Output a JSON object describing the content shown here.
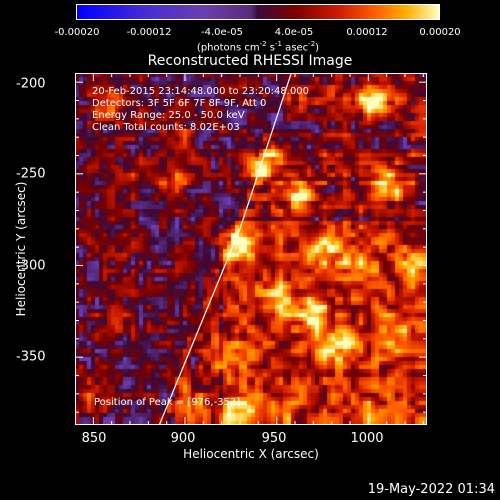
{
  "colorbar": {
    "ticks": [
      "-0.00020",
      "-0.00012",
      "-4.0e-05",
      "4.0e-05",
      "0.00012",
      "0.00020"
    ],
    "units_prefix": "(photons cm",
    "units_exp1": "-2",
    "units_mid": " s",
    "units_exp2": "-1",
    "units_mid2": " asec",
    "units_exp3": "-2",
    "units_suffix": ")"
  },
  "info": {
    "time": "20-Feb-2015 23:14:48.000 to 23:20:48.000",
    "detectors": "Detectors: 3F 5F 6F 7F 8F 9F, Att 0",
    "energy": "Energy Range: 25.0 - 50.0 keV",
    "clean": "Clean     Total counts: 8.02E+03",
    "peak": "Position of Peak = [976,-353]"
  },
  "timestamp": "19-May-2022 01:34",
  "colors": {
    "background": "#000000",
    "text": "#ffffff"
  },
  "chart_data": {
    "type": "heatmap",
    "title": "Reconstructed RHESSI Image",
    "xlabel": "Heliocentric X (arcsec)",
    "ylabel": "Heliocentric Y (arcsec)",
    "xlim": [
      840,
      1032
    ],
    "ylim": [
      -387,
      -195
    ],
    "xticks": [
      "850",
      "900",
      "950",
      "1000"
    ],
    "yticks": [
      "-200",
      "-250",
      "-300",
      "-350"
    ],
    "color_range": [
      -0.0002,
      0.0002
    ],
    "colormap": [
      "#0000ff",
      "#4a2fd0",
      "#6a3fb0",
      "#3a0a3a",
      "#7a0000",
      "#cc1a00",
      "#ff5a00",
      "#ffb000",
      "#ffffc0"
    ],
    "peak": [
      976,
      -353
    ],
    "limb": [
      [
        886,
        -387
      ],
      [
        930,
        -280
      ],
      [
        958,
        -195
      ]
    ],
    "hotspots": [
      {
        "x": 1003,
        "y": -211,
        "value": 0.0002
      },
      {
        "x": 943,
        "y": -245,
        "value": 0.00017
      },
      {
        "x": 960,
        "y": -262,
        "value": 0.00016
      },
      {
        "x": 930,
        "y": -290,
        "value": 0.00016
      },
      {
        "x": 1012,
        "y": -255,
        "value": 0.00016
      },
      {
        "x": 975,
        "y": -292,
        "value": 0.00015
      },
      {
        "x": 983,
        "y": -343,
        "value": 0.00015
      },
      {
        "x": 969,
        "y": -326,
        "value": 0.00014
      },
      {
        "x": 950,
        "y": -318,
        "value": 0.00012
      },
      {
        "x": 893,
        "y": -254,
        "value": 0.00012
      },
      {
        "x": 1014,
        "y": -337,
        "value": 0.00012
      },
      {
        "x": 930,
        "y": -380,
        "value": 0.00012
      },
      {
        "x": 860,
        "y": -213,
        "value": 0.00011
      },
      {
        "x": 995,
        "y": -298,
        "value": 0.00011
      },
      {
        "x": 903,
        "y": -378,
        "value": 0.0001
      },
      {
        "x": 925,
        "y": -352,
        "value": 0.0001
      },
      {
        "x": 848,
        "y": -370,
        "value": 9e-05
      },
      {
        "x": 950,
        "y": -380,
        "value": 9e-05
      },
      {
        "x": 896,
        "y": -230,
        "value": 8e-05
      },
      {
        "x": 1025,
        "y": -300,
        "value": 8e-05
      },
      {
        "x": 1000,
        "y": -380,
        "value": 7e-05
      },
      {
        "x": 1030,
        "y": -220,
        "value": 7e-05
      },
      {
        "x": 870,
        "y": -252,
        "value": 6e-05
      },
      {
        "x": 860,
        "y": -290,
        "value": 5e-05
      },
      {
        "x": 862,
        "y": -330,
        "value": 5e-05
      }
    ]
  }
}
